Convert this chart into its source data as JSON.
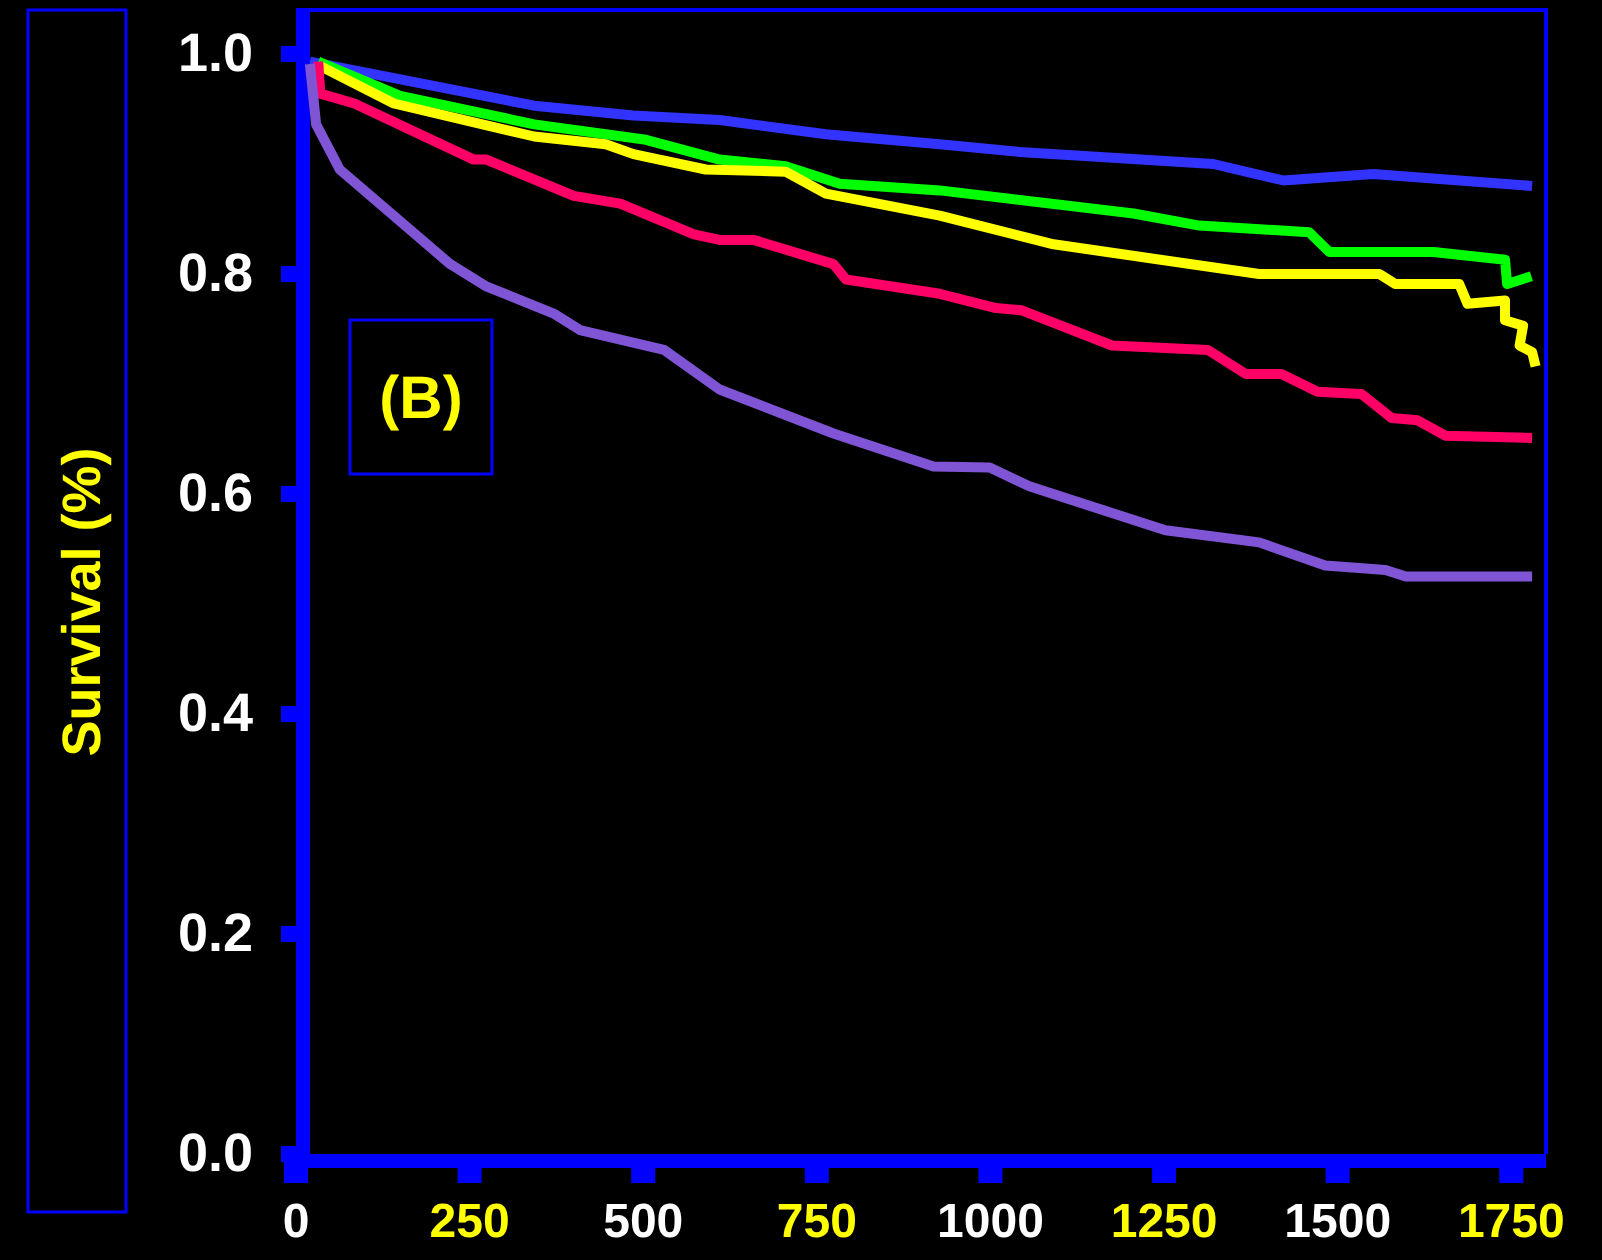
{
  "chart_data": {
    "type": "line",
    "ylabel": "Survival (%)",
    "annotations": [
      "(B)"
    ],
    "xlim": [
      0,
      1800
    ],
    "xticks": [
      0,
      250,
      500,
      750,
      1000,
      1250,
      1500,
      1750
    ],
    "ylim": [
      0,
      1.04
    ],
    "yticks": [
      {
        "value": 0,
        "label": "0.0"
      },
      {
        "value": 0.2,
        "label": "0.2"
      },
      {
        "value": 0.4,
        "label": "0.4"
      },
      {
        "value": 0.6,
        "label": "0.6"
      },
      {
        "value": 0.8,
        "label": "0.8"
      },
      {
        "value": 1,
        "label": "1.0"
      }
    ],
    "grid": false,
    "marker": "none",
    "line_style": "solid",
    "series": [
      {
        "color": "#3333ff",
        "x": [
          20,
          343,
          486,
          610,
          763,
          927,
          1042,
          1321,
          1422,
          1551,
          1780
        ],
        "values": [
          0.993,
          0.953,
          0.944,
          0.94,
          0.927,
          0.918,
          0.911,
          0.9,
          0.885,
          0.891,
          0.88
        ]
      },
      {
        "color": "#00ff00",
        "x": [
          32,
          150,
          343,
          504,
          610,
          705,
          783,
          927,
          1206,
          1301,
          1459,
          1488,
          1638,
          1741,
          1744,
          1779
        ],
        "values": [
          0.993,
          0.962,
          0.936,
          0.922,
          0.904,
          0.898,
          0.882,
          0.876,
          0.855,
          0.844,
          0.838,
          0.82,
          0.82,
          0.813,
          0.791,
          0.798
        ]
      },
      {
        "color": "#ffff00",
        "x": [
          35,
          141,
          343,
          446,
          486,
          590,
          705,
          763,
          927,
          1091,
          1387,
          1560,
          1583,
          1675,
          1687,
          1741,
          1741,
          1767,
          1762,
          1780,
          1785
        ],
        "values": [
          0.989,
          0.955,
          0.925,
          0.918,
          0.909,
          0.895,
          0.893,
          0.873,
          0.853,
          0.827,
          0.8,
          0.8,
          0.791,
          0.791,
          0.773,
          0.776,
          0.758,
          0.753,
          0.735,
          0.729,
          0.716
        ]
      },
      {
        "color": "#ff0066",
        "x": [
          32,
          35,
          84,
          256,
          274,
          400,
          467,
          573,
          610,
          659,
          774,
          792,
          927,
          1008,
          1045,
          1175,
          1313,
          1368,
          1419,
          1471,
          1534,
          1578,
          1615,
          1655,
          1780
        ],
        "values": [
          0.993,
          0.964,
          0.955,
          0.904,
          0.904,
          0.871,
          0.864,
          0.836,
          0.831,
          0.831,
          0.809,
          0.795,
          0.782,
          0.769,
          0.767,
          0.735,
          0.731,
          0.709,
          0.709,
          0.693,
          0.691,
          0.669,
          0.667,
          0.653,
          0.651
        ]
      },
      {
        "color": "#8055d5",
        "x": [
          20,
          29,
          63,
          222,
          273,
          371,
          409,
          530,
          610,
          774,
          918,
          999,
          1056,
          1252,
          1387,
          1482,
          1569,
          1598,
          1780
        ],
        "values": [
          0.991,
          0.936,
          0.895,
          0.809,
          0.789,
          0.764,
          0.749,
          0.731,
          0.695,
          0.655,
          0.625,
          0.624,
          0.607,
          0.567,
          0.556,
          0.535,
          0.531,
          0.525,
          0.525
        ]
      }
    ]
  }
}
